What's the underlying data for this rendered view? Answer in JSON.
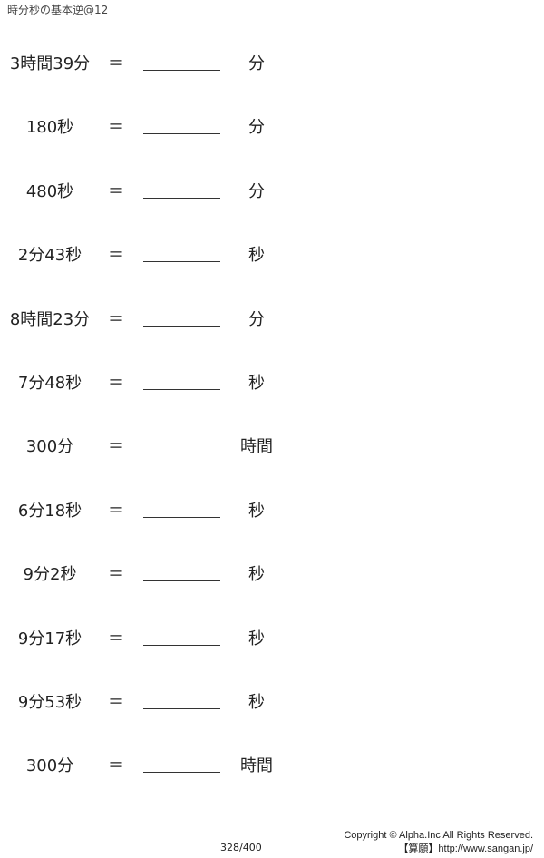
{
  "title": "時分秒の基本逆@12",
  "equals": "＝",
  "problems": [
    {
      "expr": "3時間39分",
      "unit": "分"
    },
    {
      "expr": "180秒",
      "unit": "分"
    },
    {
      "expr": "480秒",
      "unit": "分"
    },
    {
      "expr": "2分43秒",
      "unit": "秒"
    },
    {
      "expr": "8時間23分",
      "unit": "分"
    },
    {
      "expr": "7分48秒",
      "unit": "秒"
    },
    {
      "expr": "300分",
      "unit": "時間"
    },
    {
      "expr": "6分18秒",
      "unit": "秒"
    },
    {
      "expr": "9分2秒",
      "unit": "秒"
    },
    {
      "expr": "9分17秒",
      "unit": "秒"
    },
    {
      "expr": "9分53秒",
      "unit": "秒"
    },
    {
      "expr": "300分",
      "unit": "時間"
    }
  ],
  "footer": {
    "page": "328/400",
    "copyright": "Copyright © Alpha.Inc All Rights Reserved.",
    "site": "【算願】http://www.sangan.jp/"
  }
}
